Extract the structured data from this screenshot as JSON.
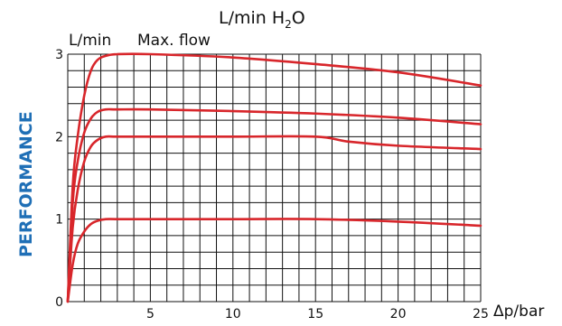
{
  "side_label": "PERFORMANCE",
  "colors": {
    "side_label": "#1f6fb6",
    "curve": "#d8262b",
    "grid": "#111111",
    "text": "#111111"
  },
  "chart_data": {
    "type": "line",
    "title": "L/min H",
    "title_sub": "2",
    "title_tail": "O",
    "ylabel": "L/min",
    "annotation": "Max. flow",
    "xlabel": "Δp/bar",
    "xlim": [
      0,
      25
    ],
    "ylim": [
      0,
      3
    ],
    "x_ticks": [
      5,
      10,
      15,
      20,
      25
    ],
    "y_ticks": [
      0,
      1,
      2,
      3
    ],
    "grid": true,
    "grid_x_step": 1,
    "grid_y_step": 0.2,
    "series": [
      {
        "x": [
          0,
          0.3,
          0.6,
          1.0,
          1.4,
          1.8,
          2.3,
          3,
          5,
          10,
          15,
          20,
          25
        ],
        "values": [
          0,
          0.45,
          0.7,
          0.85,
          0.94,
          0.98,
          1.0,
          1.0,
          1.0,
          1.0,
          1.0,
          0.97,
          0.92
        ]
      },
      {
        "x": [
          0,
          0.3,
          0.6,
          1.0,
          1.4,
          1.8,
          2.3,
          3,
          5,
          10,
          15,
          17,
          20,
          25
        ],
        "values": [
          0,
          0.9,
          1.35,
          1.7,
          1.88,
          1.96,
          2.0,
          2.0,
          2.0,
          2.0,
          2.0,
          1.94,
          1.89,
          1.85
        ]
      },
      {
        "x": [
          0,
          0.3,
          0.6,
          1.0,
          1.4,
          1.8,
          2.3,
          3,
          5,
          10,
          15,
          20,
          25
        ],
        "values": [
          0,
          1.2,
          1.7,
          2.05,
          2.22,
          2.3,
          2.33,
          2.33,
          2.33,
          2.31,
          2.28,
          2.23,
          2.15
        ]
      },
      {
        "x": [
          0,
          0.3,
          0.6,
          1.0,
          1.4,
          1.8,
          2.3,
          3,
          5,
          10,
          15,
          20,
          25
        ],
        "values": [
          0,
          1.4,
          2.0,
          2.5,
          2.8,
          2.93,
          2.98,
          3.0,
          3.0,
          2.96,
          2.88,
          2.78,
          2.62
        ]
      }
    ]
  }
}
